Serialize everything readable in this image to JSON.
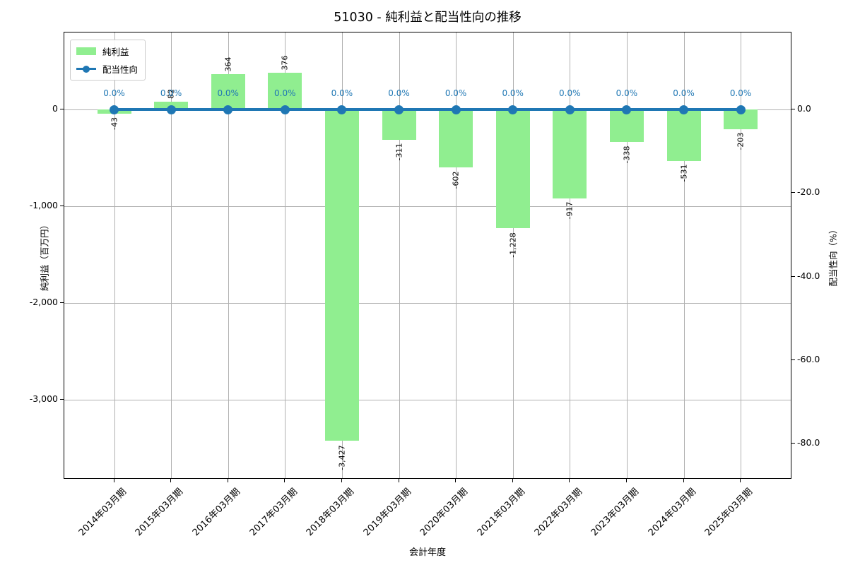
{
  "title": "51030 - 純利益と配当性向の推移",
  "legend": {
    "bar_label": "純利益",
    "line_label": "配当性向"
  },
  "x_axis": {
    "label": "会計年度",
    "tick_labels": [
      "2014年03月期",
      "2015年03月期",
      "2016年03月期",
      "2017年03月期",
      "2018年03月期",
      "2019年03月期",
      "2020年03月期",
      "2021年03月期",
      "2022年03月期",
      "2023年03月期",
      "2024年03月期",
      "2025年03月期"
    ]
  },
  "y_axis_left": {
    "label": "純利益（百万円）",
    "tick_labels": [
      "0",
      "-1,000",
      "-2,000",
      "-3,000"
    ],
    "tick_values": [
      0,
      -1000,
      -2000,
      -3000
    ]
  },
  "y_axis_right": {
    "label": "配当性向（%）",
    "tick_labels": [
      "0.0",
      "-20.0",
      "-40.0",
      "-60.0",
      "-80.0"
    ],
    "tick_values": [
      0,
      -20,
      -40,
      -60,
      -80
    ]
  },
  "chart_data": {
    "type": "bar+line",
    "title": "51030 - 純利益と配当性向の推移",
    "xlabel": "会計年度",
    "ylabel_left": "純利益（百万円）",
    "ylabel_right": "配当性向（%）",
    "categories": [
      "2014年03月期",
      "2015年03月期",
      "2016年03月期",
      "2017年03月期",
      "2018年03月期",
      "2019年03月期",
      "2020年03月期",
      "2021年03月期",
      "2022年03月期",
      "2023年03月期",
      "2024年03月期",
      "2025年03月期"
    ],
    "series": [
      {
        "name": "純利益",
        "type": "bar",
        "axis": "left",
        "unit": "百万円",
        "values": [
          -43,
          82,
          364,
          376,
          -3427,
          -311,
          -602,
          -1228,
          -917,
          -338,
          -531,
          -203
        ],
        "data_labels": [
          "-43",
          "82",
          "364",
          "376",
          "-3,427",
          "-311",
          "-602",
          "-1,228",
          "-917",
          "-338",
          "-531",
          "-203"
        ]
      },
      {
        "name": "配当性向",
        "type": "line",
        "axis": "right",
        "unit": "%",
        "values": [
          0,
          0,
          0,
          0,
          0,
          0,
          0,
          0,
          0,
          0,
          0,
          0
        ],
        "data_labels": [
          "0.0%",
          "0.0%",
          "0.0%",
          "0.0%",
          "0.0%",
          "0.0%",
          "0.0%",
          "0.0%",
          "0.0%",
          "0.0%",
          "0.0%",
          "0.0%"
        ]
      }
    ],
    "ylim_left": [
      -3825,
      795
    ],
    "ylim_right": [
      -88.6,
      18.4
    ],
    "grid": true,
    "legend_position": "upper left"
  },
  "colors": {
    "bar": "#90EE90",
    "line": "#1F77B4",
    "pct_annotation": "#1F77B4",
    "grid": "#B0B0B0",
    "text": "#000000",
    "spine": "#000000"
  }
}
